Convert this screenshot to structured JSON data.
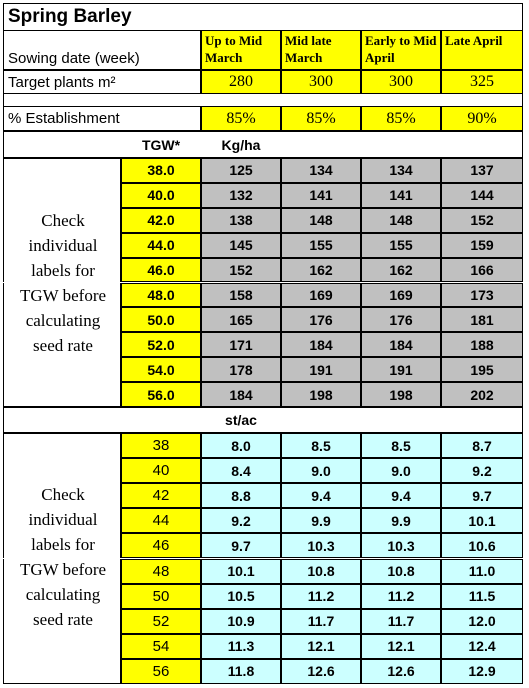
{
  "title": "Spring Barley",
  "sowing_label": "Sowing date (week)",
  "target_label": "Target plants m²",
  "establishment_label": "% Establishment",
  "sowing_periods": [
    {
      "period": "Up to Mid March",
      "target": "280",
      "establishment": "85%"
    },
    {
      "period": "Mid late March",
      "target": "300",
      "establishment": "85%"
    },
    {
      "period": "Early to Mid April",
      "target": "300",
      "establishment": "85%"
    },
    {
      "period": "Late April",
      "target": "325",
      "establishment": "90%"
    }
  ],
  "tgw_header": "TGW*",
  "kgha_header": "Kg/ha",
  "stac_header": "st/ac",
  "note_lines": [
    "Check",
    "individual",
    "labels for",
    "TGW before",
    "calculating",
    "seed rate"
  ],
  "kgha_rows": [
    {
      "tgw": "38.0",
      "values": [
        "125",
        "134",
        "134",
        "137"
      ]
    },
    {
      "tgw": "40.0",
      "values": [
        "132",
        "141",
        "141",
        "144"
      ]
    },
    {
      "tgw": "42.0",
      "values": [
        "138",
        "148",
        "148",
        "152"
      ]
    },
    {
      "tgw": "44.0",
      "values": [
        "145",
        "155",
        "155",
        "159"
      ]
    },
    {
      "tgw": "46.0",
      "values": [
        "152",
        "162",
        "162",
        "166"
      ]
    },
    {
      "tgw": "48.0",
      "values": [
        "158",
        "169",
        "169",
        "173"
      ]
    },
    {
      "tgw": "50.0",
      "values": [
        "165",
        "176",
        "176",
        "181"
      ]
    },
    {
      "tgw": "52.0",
      "values": [
        "171",
        "184",
        "184",
        "188"
      ]
    },
    {
      "tgw": "54.0",
      "values": [
        "178",
        "191",
        "191",
        "195"
      ]
    },
    {
      "tgw": "56.0",
      "values": [
        "184",
        "198",
        "198",
        "202"
      ]
    }
  ],
  "stac_rows": [
    {
      "tgw": "38",
      "values": [
        "8.0",
        "8.5",
        "8.5",
        "8.7"
      ]
    },
    {
      "tgw": "40",
      "values": [
        "8.4",
        "9.0",
        "9.0",
        "9.2"
      ]
    },
    {
      "tgw": "42",
      "values": [
        "8.8",
        "9.4",
        "9.4",
        "9.7"
      ]
    },
    {
      "tgw": "44",
      "values": [
        "9.2",
        "9.9",
        "9.9",
        "10.1"
      ]
    },
    {
      "tgw": "46",
      "values": [
        "9.7",
        "10.3",
        "10.3",
        "10.6"
      ]
    },
    {
      "tgw": "48",
      "values": [
        "10.1",
        "10.8",
        "10.8",
        "11.0"
      ]
    },
    {
      "tgw": "50",
      "values": [
        "10.5",
        "11.2",
        "11.2",
        "11.5"
      ]
    },
    {
      "tgw": "52",
      "values": [
        "10.9",
        "11.7",
        "11.7",
        "12.0"
      ]
    },
    {
      "tgw": "54",
      "values": [
        "11.3",
        "12.1",
        "12.1",
        "12.4"
      ]
    },
    {
      "tgw": "56",
      "values": [
        "11.8",
        "12.6",
        "12.6",
        "12.9"
      ]
    }
  ],
  "colors": {
    "yellow": "#ffff00",
    "grey": "#c0c0c0",
    "cyan": "#ccffff"
  }
}
